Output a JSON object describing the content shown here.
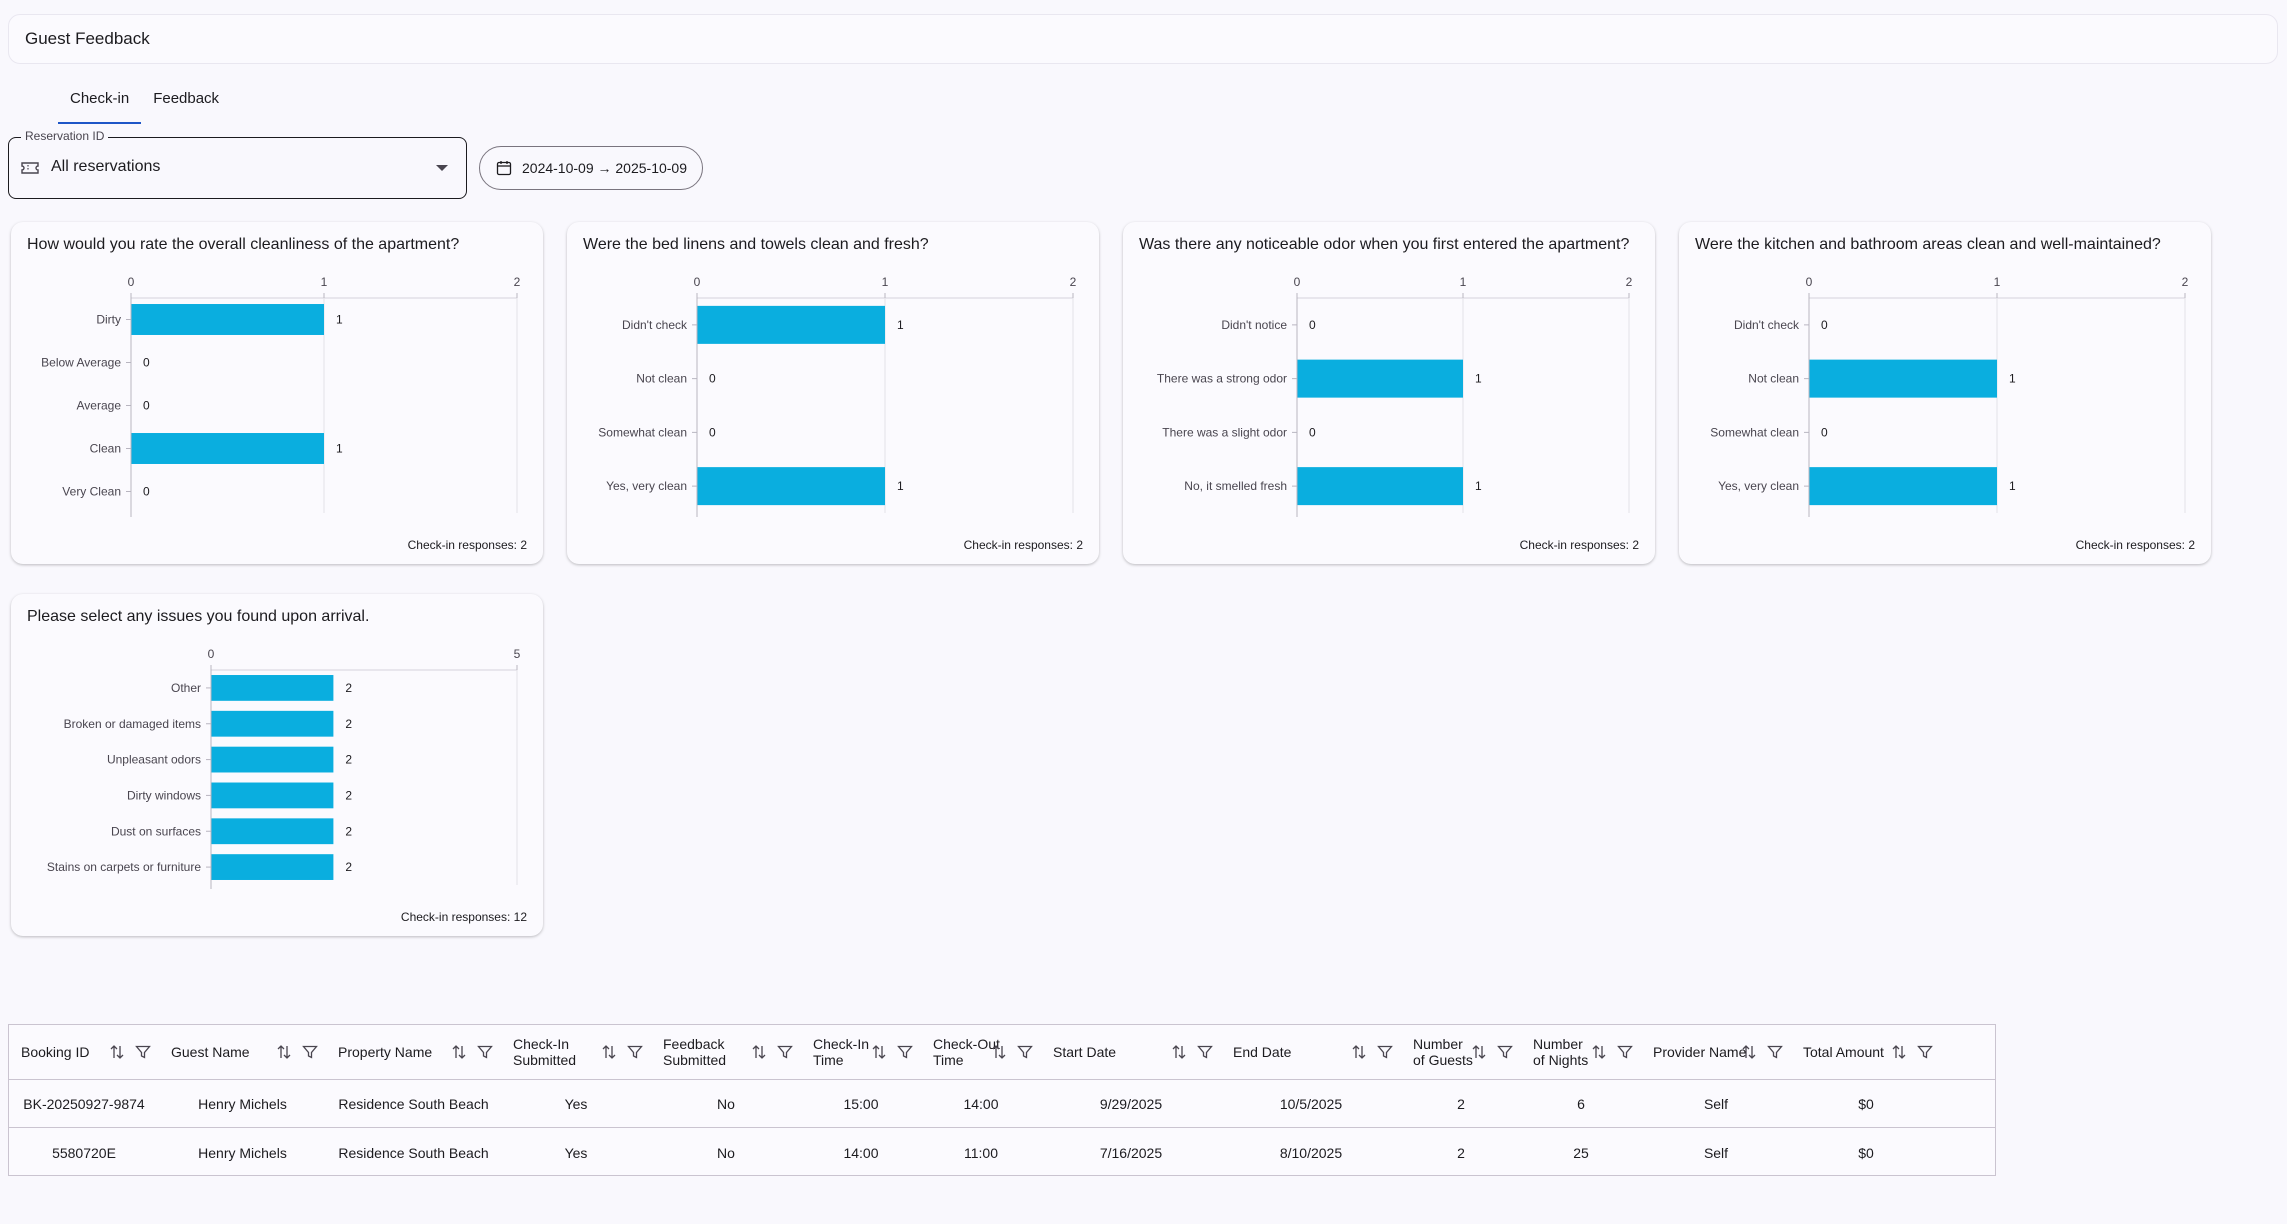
{
  "header": {
    "title": "Guest Feedback"
  },
  "tabs": [
    {
      "label": "Check-in"
    },
    {
      "label": "Feedback"
    }
  ],
  "filters": {
    "reservation_label": "Reservation ID",
    "reservation_value": "All reservations",
    "date_range": "2024-10-09 → 2025-10-09"
  },
  "chart_data": [
    {
      "type": "bar",
      "orientation": "horizontal",
      "title": "How would you rate the overall cleanliness of the apartment?",
      "categories": [
        "Dirty",
        "Below Average",
        "Average",
        "Clean",
        "Very Clean"
      ],
      "values": [
        1,
        0,
        0,
        1,
        0
      ],
      "xlim": [
        0,
        2
      ],
      "xticks": [
        0,
        1,
        2
      ],
      "footer": "Check-in responses: 2",
      "color": "#0aaedf"
    },
    {
      "type": "bar",
      "orientation": "horizontal",
      "title": "Were the bed linens and towels clean and fresh?",
      "categories": [
        "Didn't check",
        "Not clean",
        "Somewhat clean",
        "Yes, very clean"
      ],
      "values": [
        1,
        0,
        0,
        1
      ],
      "xlim": [
        0,
        2
      ],
      "xticks": [
        0,
        1,
        2
      ],
      "footer": "Check-in responses: 2",
      "color": "#0aaedf"
    },
    {
      "type": "bar",
      "orientation": "horizontal",
      "title": "Was there any noticeable odor when you first entered the apartment?",
      "categories": [
        "Didn't notice",
        "There was a strong odor",
        "There was a slight odor",
        "No, it smelled fresh"
      ],
      "values": [
        0,
        1,
        0,
        1
      ],
      "xlim": [
        0,
        2
      ],
      "xticks": [
        0,
        1,
        2
      ],
      "footer": "Check-in responses: 2",
      "color": "#0aaedf"
    },
    {
      "type": "bar",
      "orientation": "horizontal",
      "title": "Were the kitchen and bathroom areas clean and well-maintained?",
      "categories": [
        "Didn't check",
        "Not clean",
        "Somewhat clean",
        "Yes, very clean"
      ],
      "values": [
        0,
        1,
        0,
        1
      ],
      "xlim": [
        0,
        2
      ],
      "xticks": [
        0,
        1,
        2
      ],
      "footer": "Check-in responses: 2",
      "color": "#0aaedf"
    },
    {
      "type": "bar",
      "orientation": "horizontal",
      "title": "Please select any issues you found upon arrival.",
      "categories": [
        "Other",
        "Broken or damaged items",
        "Unpleasant odors",
        "Dirty windows",
        "Dust on surfaces",
        "Stains on carpets or furniture"
      ],
      "values": [
        2,
        2,
        2,
        2,
        2,
        2
      ],
      "xlim": [
        0,
        5
      ],
      "xticks": [
        0,
        5
      ],
      "footer": "Check-in responses: 12",
      "color": "#0aaedf"
    }
  ],
  "table": {
    "columns": [
      "Booking ID",
      "Guest Name",
      "Property Name",
      "Check-In Submitted",
      "Feedback Submitted",
      "Check-In Time",
      "Check-Out Time",
      "Start Date",
      "End Date",
      "Number of Guests",
      "Number of Nights",
      "Provider Name",
      "Total Amount"
    ],
    "rows": [
      [
        "BK-20250927-9874",
        "Henry Michels",
        "Residence South Beach",
        "Yes",
        "No",
        "15:00",
        "14:00",
        "9/29/2025",
        "10/5/2025",
        "2",
        "6",
        "Self",
        "$0"
      ],
      [
        "5580720E",
        "Henry Michels",
        "Residence South Beach",
        "Yes",
        "No",
        "14:00",
        "11:00",
        "7/16/2025",
        "8/10/2025",
        "2",
        "25",
        "Self",
        "$0"
      ]
    ]
  }
}
